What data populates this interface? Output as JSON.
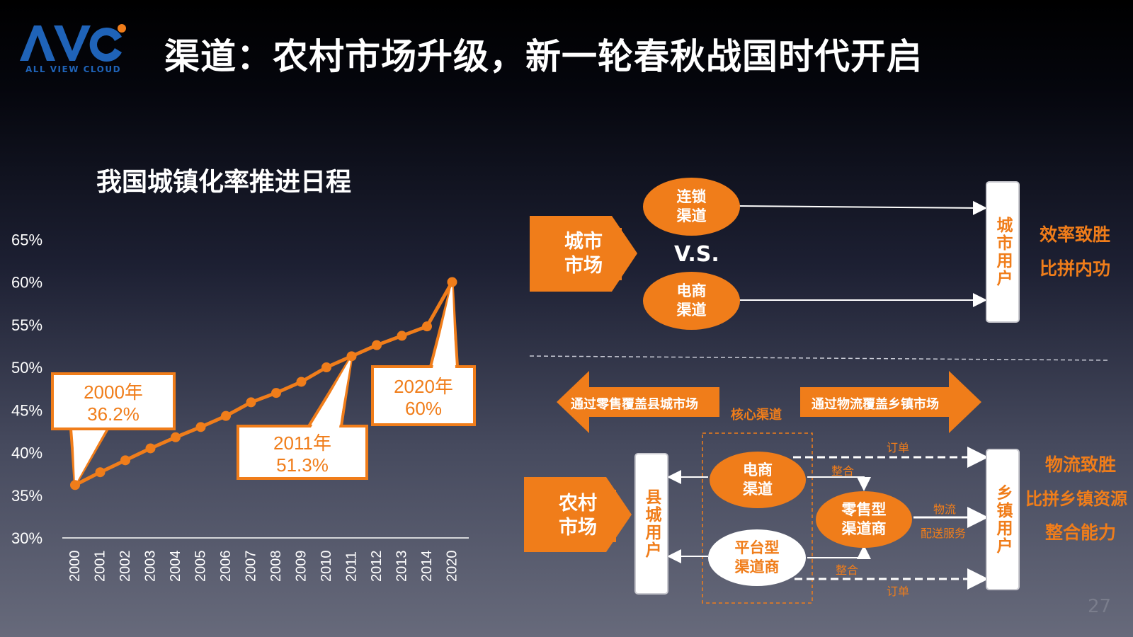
{
  "header": {
    "logo_text": "AVC",
    "logo_subtext": "ALL VIEW CLOUD",
    "title": "渠道：农村市场升级，新一轮春秋战国时代开启",
    "page_number": "27"
  },
  "colors": {
    "accent": "#f07d1a",
    "text": "#ffffff",
    "logo_blue": "#1f63b8"
  },
  "chart_data": {
    "type": "line",
    "title": "我国城镇化率推进日程",
    "categories": [
      "2000",
      "2001",
      "2002",
      "2003",
      "2004",
      "2005",
      "2006",
      "2007",
      "2008",
      "2009",
      "2010",
      "2011",
      "2012",
      "2013",
      "2014",
      "2020"
    ],
    "values": [
      36.2,
      37.7,
      39.1,
      40.5,
      41.8,
      43.0,
      44.3,
      45.9,
      47.0,
      48.3,
      50.0,
      51.3,
      52.6,
      53.7,
      54.8,
      60.0
    ],
    "yticks": [
      "65%",
      "60%",
      "55%",
      "50%",
      "45%",
      "40%",
      "35%",
      "30%"
    ],
    "ylim": [
      30,
      65
    ],
    "grid": false,
    "annotations": [
      {
        "year": "2000",
        "line1": "2000年",
        "line2": "36.2%"
      },
      {
        "year": "2011",
        "line1": "2011年",
        "line2": "51.3%"
      },
      {
        "year": "2020",
        "line1": "2020年",
        "line2": "60%"
      }
    ]
  },
  "diagram": {
    "urban": {
      "market": "城市\n市场",
      "chain_channel": "连锁\n渠道",
      "ecommerce_channel": "电商\n渠道",
      "vs": "V.S.",
      "users": "城市用户",
      "result1": "效率致胜",
      "result2": "比拼内功"
    },
    "rural": {
      "market": "农村\n市场",
      "left_arrow": "通过零售覆盖县城市场",
      "right_arrow": "通过物流覆盖乡镇市场",
      "core_label": "核心渠道",
      "county_users": "县城用户",
      "town_users": "乡镇用户",
      "ecommerce": "电商\n渠道",
      "platform": "平台型\n渠道商",
      "retail": "零售型\n渠道商",
      "order_top": "订单",
      "order_bottom": "订单",
      "integrate_top": "整合",
      "integrate_bottom": "整合",
      "logistics1": "物流",
      "logistics2": "配送服务",
      "result1": "物流致胜",
      "result2": "比拼乡镇资源",
      "result3": "整合能力"
    }
  }
}
